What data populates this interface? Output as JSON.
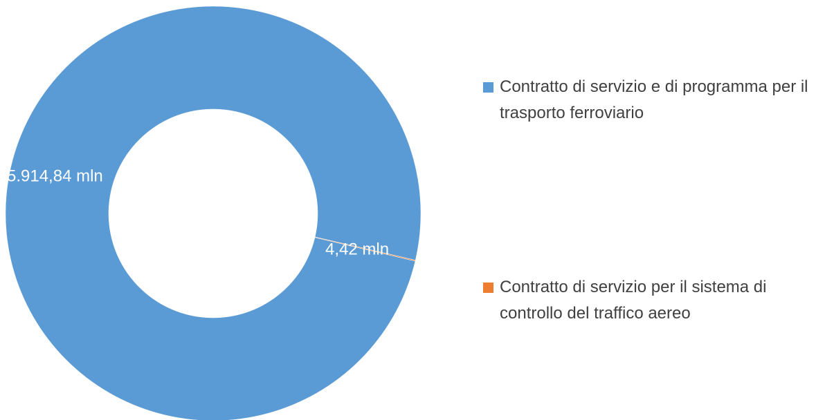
{
  "chart_data": {
    "type": "donut",
    "categories": [
      "Contratto di servizio e di programma per il trasporto ferroviario",
      "Contratto di servizio per il sistema di controllo del traffico aereo"
    ],
    "values": [
      5914.84,
      4.42
    ],
    "value_labels": [
      "5.914,84 mln",
      "4,42 mln"
    ],
    "colors": [
      "#5b9bd5",
      "#ed7d31"
    ],
    "legend": "right"
  }
}
